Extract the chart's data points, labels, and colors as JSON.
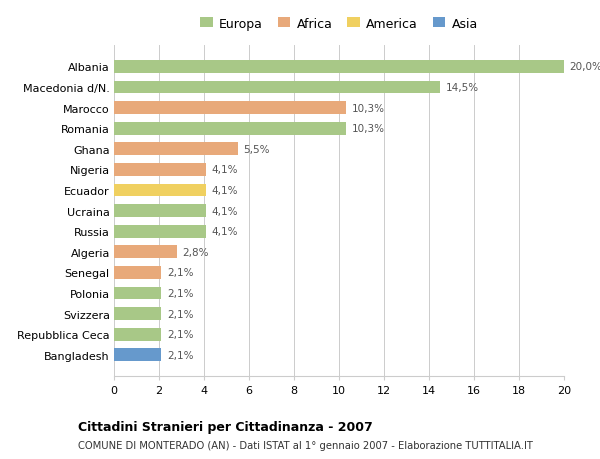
{
  "countries": [
    "Albania",
    "Macedonia d/N.",
    "Marocco",
    "Romania",
    "Ghana",
    "Nigeria",
    "Ecuador",
    "Ucraina",
    "Russia",
    "Algeria",
    "Senegal",
    "Polonia",
    "Svizzera",
    "Repubblica Ceca",
    "Bangladesh"
  ],
  "values": [
    20.0,
    14.5,
    10.3,
    10.3,
    5.5,
    4.1,
    4.1,
    4.1,
    4.1,
    2.8,
    2.1,
    2.1,
    2.1,
    2.1,
    2.1
  ],
  "labels": [
    "20,0%",
    "14,5%",
    "10,3%",
    "10,3%",
    "5,5%",
    "4,1%",
    "4,1%",
    "4,1%",
    "4,1%",
    "2,8%",
    "2,1%",
    "2,1%",
    "2,1%",
    "2,1%",
    "2,1%"
  ],
  "continents": [
    "Europa",
    "Europa",
    "Africa",
    "Europa",
    "Africa",
    "Africa",
    "America",
    "Europa",
    "Europa",
    "Africa",
    "Africa",
    "Europa",
    "Europa",
    "Europa",
    "Asia"
  ],
  "colors": {
    "Europa": "#a8c887",
    "Africa": "#e8a97a",
    "America": "#f0d060",
    "Asia": "#6699cc"
  },
  "legend_order": [
    "Europa",
    "Africa",
    "America",
    "Asia"
  ],
  "title": "Cittadini Stranieri per Cittadinanza - 2007",
  "subtitle": "COMUNE DI MONTERADO (AN) - Dati ISTAT al 1° gennaio 2007 - Elaborazione TUTTITALIA.IT",
  "xlim": [
    0,
    20
  ],
  "xticks": [
    0,
    2,
    4,
    6,
    8,
    10,
    12,
    14,
    16,
    18,
    20
  ],
  "background_color": "#ffffff",
  "grid_color": "#cccccc"
}
